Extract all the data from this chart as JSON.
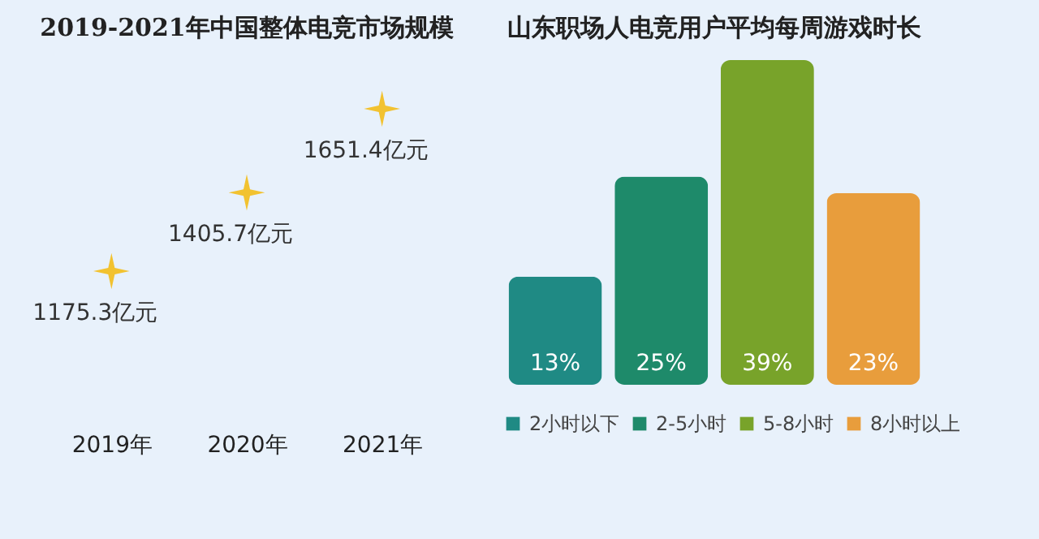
{
  "chart_data": [
    {
      "type": "scatter",
      "title": "2019-2021年中国整体电竞市场规模",
      "categories": [
        "2019年",
        "2020年",
        "2021年"
      ],
      "values": [
        1175.3,
        1405.7,
        1651.4
      ],
      "value_labels": [
        "1175.3亿元",
        "1405.7亿元",
        "1651.4亿元"
      ],
      "color": "#f2c230",
      "marker": "star",
      "tick_labels": "x"
    },
    {
      "type": "bar",
      "title": "山东职场人电竞用户平均每周游戏时长",
      "categories": [
        null,
        null,
        null,
        null
      ],
      "tick_labels": false,
      "legend": "bottom",
      "stacked": true,
      "series": [
        {
          "name": "2小时以下",
          "color": "#1f8a84",
          "values": [
            13,
            null,
            null,
            null
          ],
          "value_labels": [
            "13%",
            null,
            null,
            null
          ]
        },
        {
          "name": "2-5小时",
          "color": "#1e8a6a",
          "values": [
            null,
            25,
            null,
            null
          ],
          "value_labels": [
            null,
            "25%",
            null,
            null
          ]
        },
        {
          "name": "5-8小时",
          "color": "#78a32a",
          "values": [
            null,
            null,
            39,
            null
          ],
          "value_labels": [
            null,
            null,
            "39%",
            null
          ]
        },
        {
          "name": "8小时以上",
          "color": "#e89d3c",
          "values": [
            null,
            null,
            null,
            23
          ],
          "value_labels": [
            null,
            null,
            null,
            "23%"
          ]
        }
      ]
    }
  ]
}
